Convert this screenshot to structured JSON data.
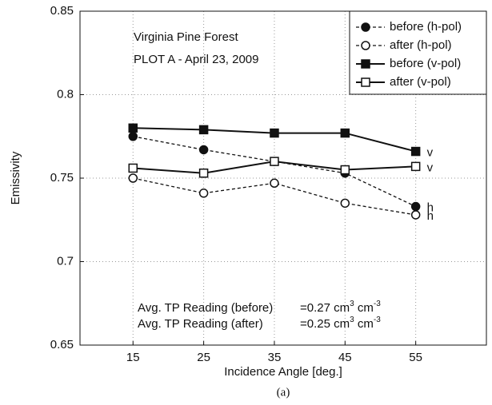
{
  "chart_data": {
    "type": "line",
    "x_label": "Incidence Angle [deg.]",
    "y_label": "Emissivity",
    "caption": "(a)",
    "x": [
      15,
      25,
      35,
      45,
      55
    ],
    "xlim": [
      7.5,
      65
    ],
    "xticks": [
      15,
      25,
      35,
      45,
      55
    ],
    "ylim": [
      0.65,
      0.85
    ],
    "yticks": [
      0.65,
      0.7,
      0.75,
      0.8,
      0.85
    ],
    "grid": true,
    "legend": "upper right",
    "annotations": [
      "Virginia Pine Forest",
      "PLOT A - April 23, 2009"
    ],
    "readings": [
      {
        "label": "Avg. TP Reading (before)",
        "value": "=0.27 cm",
        "sup1": "3",
        "unit": " cm",
        "sup2": "-3"
      },
      {
        "label": "Avg. TP Reading (after)",
        "value": "=0.25 cm",
        "sup1": "3",
        "unit": " cm",
        "sup2": "-3"
      }
    ],
    "series": [
      {
        "name": "before (h-pol)",
        "color": "#111111",
        "dashed": true,
        "marker": "circle",
        "filled": true,
        "end_label": "h",
        "values": [
          0.775,
          0.767,
          0.76,
          0.753,
          0.733
        ]
      },
      {
        "name": "after (h-pol)",
        "color": "#111111",
        "dashed": true,
        "marker": "circle",
        "filled": false,
        "end_label": "h",
        "values": [
          0.75,
          0.741,
          0.747,
          0.735,
          0.728
        ]
      },
      {
        "name": "before (v-pol)",
        "color": "#111111",
        "dashed": false,
        "marker": "square",
        "filled": true,
        "end_label": "v",
        "values": [
          0.78,
          0.779,
          0.777,
          0.777,
          0.766
        ]
      },
      {
        "name": "after (v-pol)",
        "color": "#111111",
        "dashed": false,
        "marker": "square",
        "filled": false,
        "end_label": "v",
        "values": [
          0.756,
          0.753,
          0.76,
          0.755,
          0.757
        ]
      }
    ]
  }
}
